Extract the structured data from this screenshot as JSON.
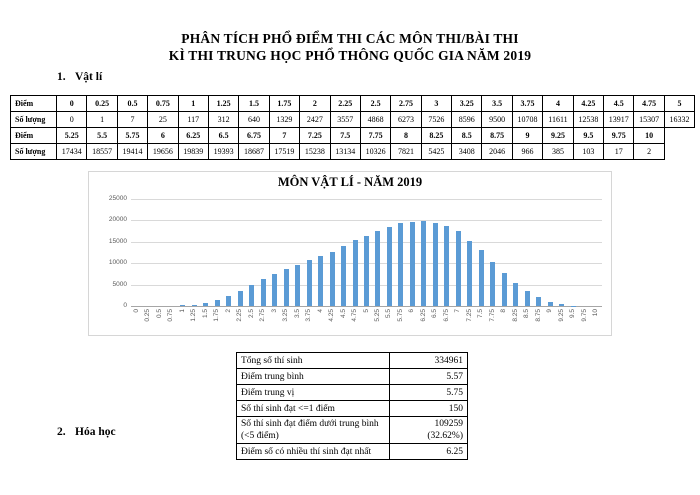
{
  "page": {
    "title_line1": "PHÂN TÍCH PHỔ ĐIỂM THI CÁC MÔN THI/BÀI THI",
    "title_line2": "KÌ THI TRUNG HỌC PHỔ THÔNG QUỐC GIA NĂM 2019",
    "section1_num": "1.",
    "section1_label": "Vật lí",
    "section2_num": "2.",
    "section2_label": "Hóa học"
  },
  "score_table": {
    "row_label_score": "Điểm",
    "row_label_count": "Số lượng",
    "part1": {
      "scores": [
        "0",
        "0.25",
        "0.5",
        "0.75",
        "1",
        "1.25",
        "1.5",
        "1.75",
        "2",
        "2.25",
        "2.5",
        "2.75",
        "3",
        "3.25",
        "3.5",
        "3.75",
        "4",
        "4.25",
        "4.5",
        "4.75",
        "5"
      ],
      "counts": [
        "0",
        "1",
        "7",
        "25",
        "117",
        "312",
        "640",
        "1329",
        "2427",
        "3557",
        "4868",
        "6273",
        "7526",
        "8596",
        "9500",
        "10708",
        "11611",
        "12538",
        "13917",
        "15307",
        "16332"
      ]
    },
    "part2": {
      "scores": [
        "5.25",
        "5.5",
        "5.75",
        "6",
        "6.25",
        "6.5",
        "6.75",
        "7",
        "7.25",
        "7.5",
        "7.75",
        "8",
        "8.25",
        "8.5",
        "8.75",
        "9",
        "9.25",
        "9.5",
        "9.75",
        "10"
      ],
      "counts": [
        "17434",
        "18557",
        "19414",
        "19656",
        "19839",
        "19393",
        "18687",
        "17519",
        "15238",
        "13134",
        "10326",
        "7821",
        "5425",
        "3408",
        "2046",
        "966",
        "385",
        "103",
        "17",
        "2"
      ]
    }
  },
  "chart_data": {
    "type": "bar",
    "title": "MÔN VẬT LÍ - NĂM 2019",
    "categories": [
      "0",
      "0.25",
      "0.5",
      "0.75",
      "1",
      "1.25",
      "1.5",
      "1.75",
      "2",
      "2.25",
      "2.5",
      "2.75",
      "3",
      "3.25",
      "3.5",
      "3.75",
      "4",
      "4.25",
      "4.5",
      "4.75",
      "5",
      "5.25",
      "5.5",
      "5.75",
      "6",
      "6.25",
      "6.5",
      "6.75",
      "7",
      "7.25",
      "7.5",
      "7.75",
      "8",
      "8.25",
      "8.5",
      "8.75",
      "9",
      "9.25",
      "9.5",
      "9.75",
      "10"
    ],
    "values": [
      0,
      1,
      7,
      25,
      117,
      312,
      640,
      1329,
      2427,
      3557,
      4868,
      6273,
      7526,
      8596,
      9500,
      10708,
      11611,
      12538,
      13917,
      15307,
      16332,
      17434,
      18557,
      19414,
      19656,
      19839,
      19393,
      18687,
      17519,
      15238,
      13134,
      10326,
      7821,
      5425,
      3408,
      2046,
      966,
      385,
      103,
      17,
      2
    ],
    "xlabel": "",
    "ylabel": "",
    "ylim": [
      0,
      25000
    ],
    "ytick_step": 5000,
    "grid": true,
    "legend": "none",
    "bar_color": "#5b9bd5",
    "grid_color": "#d9d9d9"
  },
  "summary_table": {
    "rows": [
      {
        "label": "Tổng số thí sinh",
        "value": "334961"
      },
      {
        "label": "Điểm trung bình",
        "value": "5.57"
      },
      {
        "label": "Điểm trung vị",
        "value": "5.75"
      },
      {
        "label": "Số thí sinh đạt <=1 điểm",
        "value": "150"
      },
      {
        "label": "Số thí sinh đạt điểm dưới trung bình\n(<5 điểm)",
        "value": "109259\n(32.62%)"
      },
      {
        "label": "Điểm số có nhiều thí sinh đạt nhất",
        "value": "6.25"
      }
    ]
  }
}
